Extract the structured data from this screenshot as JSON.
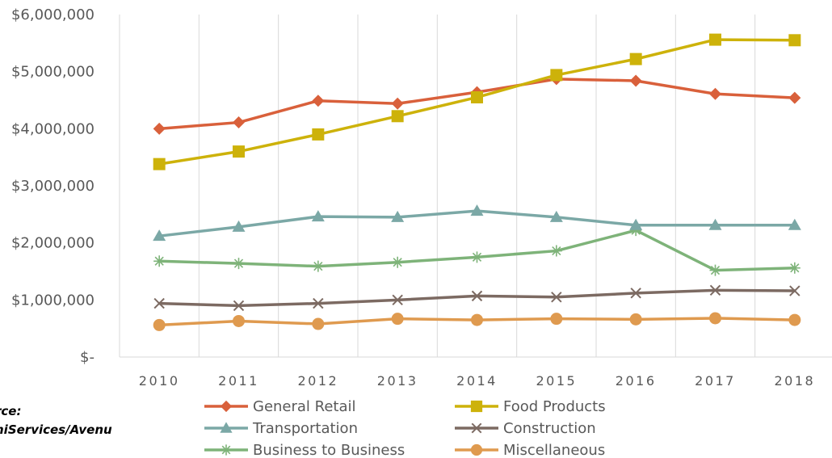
{
  "source": {
    "line1": "rce:",
    "line2": "niServices/Avenu"
  },
  "chart_data": {
    "type": "line",
    "title": "",
    "xlabel": "",
    "ylabel": "",
    "x": [
      "2010",
      "2011",
      "2012",
      "2013",
      "2014",
      "2015",
      "2016",
      "2017",
      "2018"
    ],
    "ylim": [
      0,
      6000000
    ],
    "yticks": [
      {
        "value": 0,
        "label": "$-"
      },
      {
        "value": 1000000,
        "label": "$1,000,000"
      },
      {
        "value": 2000000,
        "label": "$2,000,000"
      },
      {
        "value": 3000000,
        "label": "$3,000,000"
      },
      {
        "value": 4000000,
        "label": "$4,000,000"
      },
      {
        "value": 5000000,
        "label": "$5,000,000"
      },
      {
        "value": 6000000,
        "label": "$6,000,000"
      }
    ],
    "grid": "vertical",
    "legend_position": "bottom",
    "series": [
      {
        "name": "General Retail",
        "color": "#D9603B",
        "marker": "diamond",
        "values": [
          4000000,
          4110000,
          4490000,
          4440000,
          4640000,
          4870000,
          4840000,
          4610000,
          4540000
        ]
      },
      {
        "name": "Food Products",
        "color": "#CDB20A",
        "marker": "square",
        "values": [
          3380000,
          3600000,
          3900000,
          4220000,
          4550000,
          4940000,
          5220000,
          5560000,
          5550000
        ]
      },
      {
        "name": "Transportation",
        "color": "#7BA8A6",
        "marker": "triangle",
        "values": [
          2120000,
          2280000,
          2460000,
          2450000,
          2560000,
          2450000,
          2310000,
          2310000,
          2310000
        ]
      },
      {
        "name": "Construction",
        "color": "#7C6A62",
        "marker": "x",
        "values": [
          940000,
          900000,
          940000,
          1000000,
          1070000,
          1050000,
          1120000,
          1170000,
          1160000
        ]
      },
      {
        "name": "Business to Business",
        "color": "#7EB379",
        "marker": "star",
        "values": [
          1680000,
          1640000,
          1590000,
          1660000,
          1750000,
          1860000,
          2220000,
          1520000,
          1560000
        ]
      },
      {
        "name": "Miscellaneous",
        "color": "#DF9A4F",
        "marker": "circle",
        "values": [
          560000,
          630000,
          580000,
          670000,
          650000,
          670000,
          660000,
          680000,
          650000
        ]
      }
    ]
  }
}
